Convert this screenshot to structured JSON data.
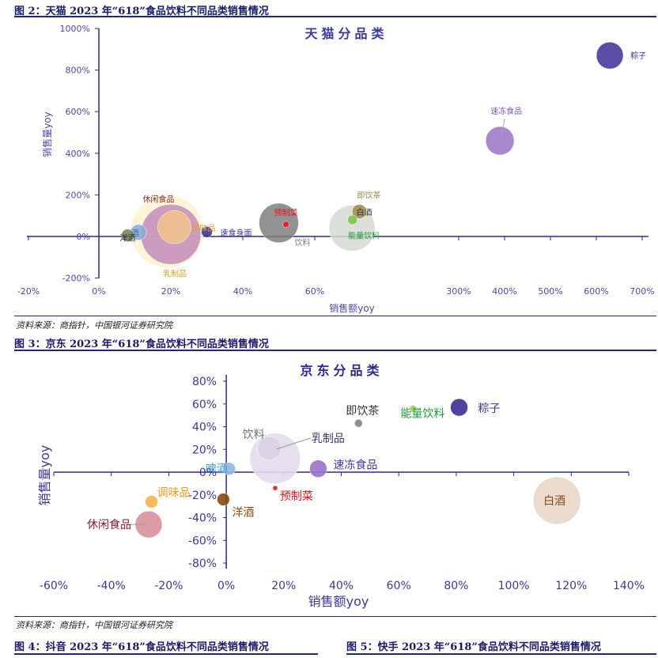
{
  "figures": {
    "fig2_title": "图 2：天猫 2023 年“618”食品饮料不同品类销售情况",
    "fig2_source": "资料来源：商指针，中国银河证券研究院",
    "fig3_title": "图 3：京东 2023 年“618”食品饮料不同品类销售情况",
    "fig3_source": "资料来源：商指针，中国银河证券研究院",
    "fig4_title": "图 4：抖音 2023 年“618”食品饮料不同品类销售情况",
    "fig5_title": "图 5：快手 2023 年“618”食品饮料不同品类销售情况"
  },
  "chart_data": [
    {
      "type": "scatter",
      "variant": "bubble",
      "title": "天猫分品类",
      "xlabel": "销售额yoy",
      "ylabel": "销售量yoy",
      "x_axis_note": "broken axis: linear 0%–60% then compressed 300%–700%",
      "xticks": [
        "-20%",
        "0%",
        "20%",
        "40%",
        "60%",
        "300%",
        "400%",
        "500%",
        "600%",
        "700%"
      ],
      "yticks": [
        "1000%",
        "800%",
        "600%",
        "400%",
        "200%",
        "0%",
        "-200%"
      ],
      "ylim": [
        -200,
        1000
      ],
      "points": [
        {
          "name": "粽子",
          "x": 630,
          "y": 870,
          "color": "#3d2f96"
        },
        {
          "name": "速冻食品",
          "x": 390,
          "y": 460,
          "color": "#9b72c9"
        },
        {
          "name": "即饮茶",
          "x": 83,
          "y": 120,
          "color": "#9d8a4a"
        },
        {
          "name": "白酒",
          "x": 68,
          "y": 80,
          "color": "#7cc242"
        },
        {
          "name": "能量饮料",
          "x": 67,
          "y": 40,
          "color": "#d3d9d0"
        },
        {
          "name": "预制菜",
          "x": 52,
          "y": 58,
          "color": "#e8101a"
        },
        {
          "name": "饮料",
          "x": 50,
          "y": 65,
          "color": "#7f7f7f"
        },
        {
          "name": "速食身面",
          "x": 30,
          "y": 22,
          "color": "#2e2a8a"
        },
        {
          "name": "休闲食品",
          "x": 19,
          "y": 25,
          "color": "#fff3cf"
        },
        {
          "name": "乳制品",
          "x": 20,
          "y": 10,
          "color": "#c28cb8"
        },
        {
          "name": "调味品",
          "x": 21,
          "y": 45,
          "color": "#f2c48a"
        },
        {
          "name": "酒",
          "x": 11,
          "y": 20,
          "color": "#8aa9d8"
        },
        {
          "name": "洋酒",
          "x": 8,
          "y": 5,
          "color": "#6f7f58"
        }
      ]
    },
    {
      "type": "scatter",
      "variant": "bubble",
      "title": "京东分品类",
      "xlabel": "销售额yoy",
      "ylabel": "销售量yoy",
      "xticks": [
        "-60%",
        "-40%",
        "-20%",
        "0%",
        "20%",
        "40%",
        "60%",
        "80%",
        "100%",
        "120%",
        "140%"
      ],
      "yticks": [
        "80%",
        "60%",
        "40%",
        "20%",
        "0%",
        "-20%",
        "-40%",
        "-60%",
        "-80%"
      ],
      "xlim": [
        -60,
        140
      ],
      "ylim": [
        -80,
        80
      ],
      "points": [
        {
          "name": "粽子",
          "x": 81,
          "y": 57,
          "color": "#3d2f96"
        },
        {
          "name": "能量饮料",
          "x": 65,
          "y": 56,
          "color": "#9acd52"
        },
        {
          "name": "即饮茶",
          "x": 46,
          "y": 43,
          "color": "#8a7f8f"
        },
        {
          "name": "饮料",
          "x": 15,
          "y": 21,
          "color": "#d8d0e3"
        },
        {
          "name": "乳制品",
          "x": 17,
          "y": 12,
          "color": "#e2dcec"
        },
        {
          "name": "速冻食品",
          "x": 32,
          "y": 3,
          "color": "#9b72c9"
        },
        {
          "name": "啤酒",
          "x": 1,
          "y": 3,
          "color": "#8fb6e0"
        },
        {
          "name": "预制菜",
          "x": 17,
          "y": -14,
          "color": "#e8101a"
        },
        {
          "name": "洋酒",
          "x": -1,
          "y": -24,
          "color": "#8a4a12"
        },
        {
          "name": "调味品",
          "x": -26,
          "y": -26,
          "color": "#f7b24a"
        },
        {
          "name": "休闲食品",
          "x": -27,
          "y": -46,
          "color": "#d9909c"
        },
        {
          "name": "白酒",
          "x": 115,
          "y": -25,
          "color": "#e9d6c8"
        }
      ]
    }
  ]
}
